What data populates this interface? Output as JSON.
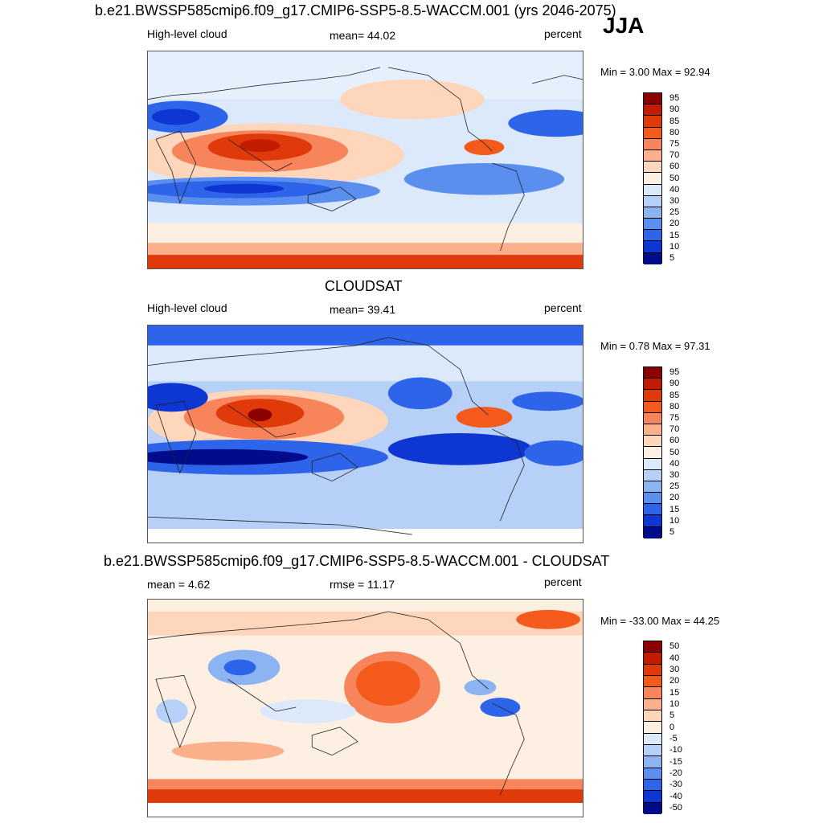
{
  "season": "JJA",
  "panels": [
    {
      "title": "b.e21.BWSSP585cmip6.f09_g17.CMIP6-SSP5-8.5-WACCM.001 (yrs 2046-2075)",
      "left_label": "High-level cloud",
      "center_label": "mean=  44.02",
      "right_label": "percent",
      "minmax": "Min =   3.00 Max =  92.94",
      "colorbar_labels": [
        "95",
        "90",
        "85",
        "80",
        "75",
        "70",
        "60",
        "50",
        "40",
        "30",
        "25",
        "20",
        "15",
        "10",
        "5"
      ]
    },
    {
      "title": "CLOUDSAT",
      "left_label": "High-level cloud",
      "center_label": "mean=  39.41",
      "right_label": "percent",
      "minmax": "Min =   0.78 Max =  97.31",
      "colorbar_labels": [
        "95",
        "90",
        "85",
        "80",
        "75",
        "70",
        "60",
        "50",
        "40",
        "30",
        "25",
        "20",
        "15",
        "10",
        "5"
      ]
    },
    {
      "title": "b.e21.BWSSP585cmip6.f09_g17.CMIP6-SSP5-8.5-WACCM.001 - CLOUDSAT",
      "left_label": "mean =   4.62",
      "center_label": "rmse =  11.17",
      "right_label": "percent",
      "minmax": "Min = -33.00 Max =  44.25",
      "colorbar_labels": [
        "50",
        "40",
        "30",
        "20",
        "15",
        "10",
        "5",
        "0",
        "-5",
        "-10",
        "-15",
        "-20",
        "-30",
        "-40",
        "-50"
      ]
    }
  ],
  "colors": {
    "scale": [
      "#8b0000",
      "#c21b00",
      "#e03a0a",
      "#f35a1c",
      "#f7845a",
      "#fbaf8a",
      "#fdd6bb",
      "#fdf0e3",
      "#dbe9fb",
      "#b6d0f7",
      "#8cb4f2",
      "#5a8ff0",
      "#2e64ea",
      "#0d36d2",
      "#020c8a"
    ],
    "coast": "#222222",
    "frame": "#555555"
  }
}
